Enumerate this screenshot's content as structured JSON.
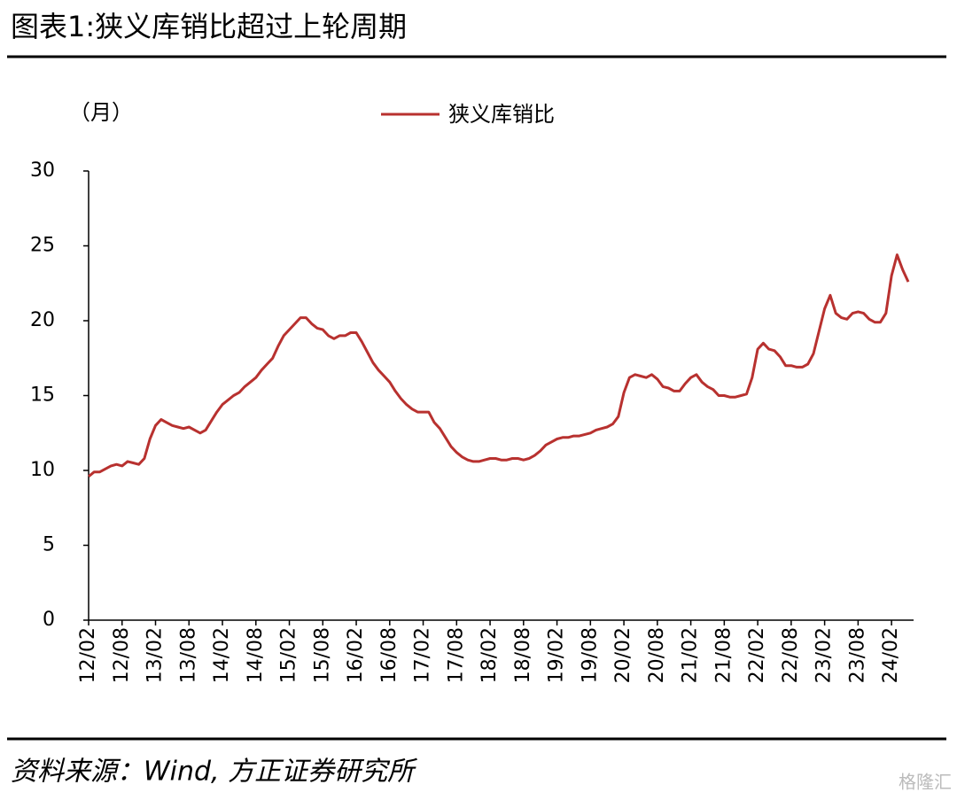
{
  "title": "图表1:狭义库销比超过上轮周期",
  "source": "资料来源：Wind, 方正证券研究所",
  "watermark": "格隆汇",
  "chart_data": {
    "type": "line",
    "unit_label": "（月）",
    "categories": [
      "12/02",
      null,
      null,
      null,
      null,
      null,
      "12/08",
      null,
      null,
      null,
      null,
      null,
      "13/02",
      null,
      null,
      null,
      null,
      null,
      "13/08",
      null,
      null,
      null,
      null,
      null,
      "14/02",
      null,
      null,
      null,
      null,
      null,
      "14/08",
      null,
      null,
      null,
      null,
      null,
      "15/02",
      null,
      null,
      null,
      null,
      null,
      "15/08",
      null,
      null,
      null,
      null,
      null,
      "16/02",
      null,
      null,
      null,
      null,
      null,
      "16/08",
      null,
      null,
      null,
      null,
      null,
      "17/02",
      null,
      null,
      null,
      null,
      null,
      "17/08",
      null,
      null,
      null,
      null,
      null,
      "18/02",
      null,
      null,
      null,
      null,
      null,
      "18/08",
      null,
      null,
      null,
      null,
      null,
      "19/02",
      null,
      null,
      null,
      null,
      null,
      "19/08",
      null,
      null,
      null,
      null,
      null,
      "20/02",
      null,
      null,
      null,
      null,
      null,
      "20/08",
      null,
      null,
      null,
      null,
      null,
      "21/02",
      null,
      null,
      null,
      null,
      null,
      "21/08",
      null,
      null,
      null,
      null,
      null,
      "22/02",
      null,
      null,
      null,
      null,
      null,
      "22/08",
      null,
      null,
      null,
      null,
      null,
      "23/02",
      null,
      null,
      null,
      null,
      null,
      "23/08",
      null,
      null,
      null,
      null,
      null,
      "24/02",
      null,
      null,
      null
    ],
    "series": [
      {
        "name": "狭义库销比",
        "color": "#b8312f",
        "values": [
          9.6,
          9.9,
          9.9,
          10.1,
          10.3,
          10.4,
          10.3,
          10.6,
          10.5,
          10.4,
          10.8,
          12.1,
          13.0,
          13.4,
          13.2,
          13.0,
          12.9,
          12.8,
          12.9,
          12.7,
          12.5,
          12.7,
          13.3,
          13.9,
          14.4,
          14.7,
          15.0,
          15.2,
          15.6,
          15.9,
          16.2,
          16.7,
          17.1,
          17.5,
          18.3,
          19.0,
          19.4,
          19.8,
          20.2,
          20.2,
          19.8,
          19.5,
          19.4,
          19.0,
          18.8,
          19.0,
          19.0,
          19.2,
          19.2,
          18.6,
          17.9,
          17.2,
          16.7,
          16.3,
          15.9,
          15.3,
          14.8,
          14.4,
          14.1,
          13.9,
          13.9,
          13.9,
          13.2,
          12.8,
          12.2,
          11.6,
          11.2,
          10.9,
          10.7,
          10.6,
          10.6,
          10.7,
          10.8,
          10.8,
          10.7,
          10.7,
          10.8,
          10.8,
          10.7,
          10.8,
          11.0,
          11.3,
          11.7,
          11.9,
          12.1,
          12.2,
          12.2,
          12.3,
          12.3,
          12.4,
          12.5,
          12.7,
          12.8,
          12.9,
          13.1,
          13.6,
          15.2,
          16.2,
          16.4,
          16.3,
          16.2,
          16.4,
          16.1,
          15.6,
          15.5,
          15.3,
          15.3,
          15.8,
          16.2,
          16.4,
          15.9,
          15.6,
          15.4,
          15.0,
          15.0,
          14.9,
          14.9,
          15.0,
          15.1,
          16.2,
          18.1,
          18.5,
          18.1,
          18.0,
          17.6,
          17.0,
          17.0,
          16.9,
          16.9,
          17.1,
          17.8,
          19.3,
          20.8,
          21.7,
          20.5,
          20.2,
          20.1,
          20.5,
          20.6,
          20.5,
          20.1,
          19.9,
          19.9,
          20.5,
          23.0,
          24.4,
          23.4,
          22.6
        ]
      }
    ],
    "ylim": [
      0,
      30
    ],
    "yticks": [
      0,
      5,
      10,
      15,
      20,
      25,
      30
    ],
    "grid": false
  }
}
